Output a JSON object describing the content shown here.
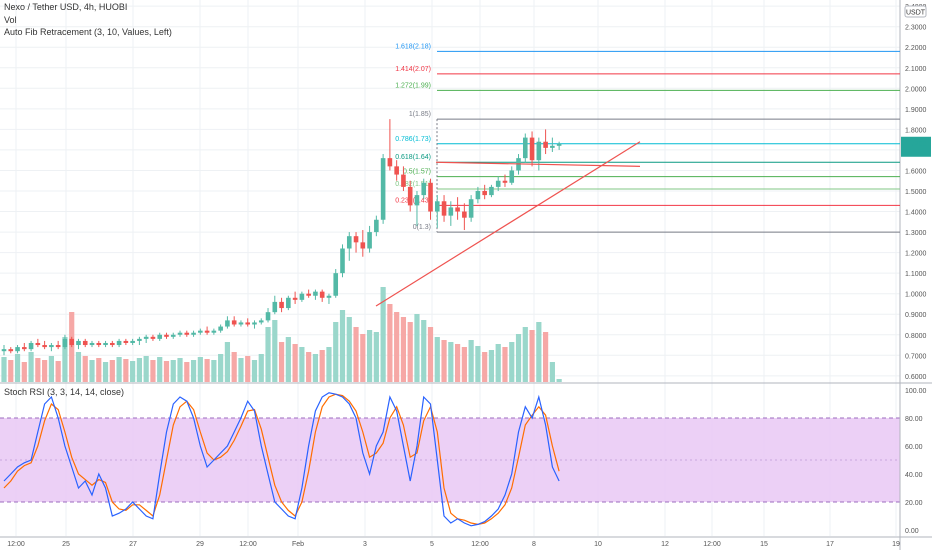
{
  "header": {
    "symbol_line": "Nexo / Tether USD, 4h, HUOBI",
    "volume_label": "Vol",
    "fib_label": "Auto Fib Retracement (3, 10, Values, Left)"
  },
  "stoch_label": "Stoch RSI (3, 3, 14, 14, close)",
  "colors": {
    "up": "#53b9a6",
    "down": "#ef5350",
    "grid": "#eef1f4",
    "rsi_band": "#e9c8f5",
    "k_line": "#2962ff",
    "d_line": "#ff6d00",
    "trend": "#ef5350"
  },
  "price_axis": {
    "currency": "USDT",
    "ticks": [
      "2.4000",
      "2.3000",
      "2.2000",
      "2.1000",
      "2.0000",
      "1.9000",
      "1.8000",
      "1.7000",
      "1.6000",
      "1.5000",
      "1.4000",
      "1.3000",
      "1.2000",
      "1.1000",
      "1.0000",
      "0.9000",
      "0.8000",
      "0.7000",
      "0.6000"
    ],
    "current_price_label": "1.7263"
  },
  "rsi_axis": {
    "ticks": [
      "100.00",
      "80.00",
      "60.00",
      "40.00",
      "20.00",
      "0.00"
    ]
  },
  "time_axis": {
    "labels": [
      "12:00",
      "25",
      "27",
      "29",
      "12:00",
      "Feb",
      "3",
      "5",
      "12:00",
      "8",
      "10",
      "12",
      "12:00",
      "15",
      "17",
      "19"
    ]
  },
  "chart_data": {
    "type": "candlestick",
    "title": "Nexo / Tether USD, 4h, HUOBI",
    "ylim": [
      0.57,
      2.43
    ],
    "candles": [
      {
        "o": 0.72,
        "h": 0.75,
        "l": 0.7,
        "c": 0.73,
        "v": 25
      },
      {
        "o": 0.73,
        "h": 0.74,
        "l": 0.71,
        "c": 0.72,
        "v": 22
      },
      {
        "o": 0.72,
        "h": 0.75,
        "l": 0.71,
        "c": 0.74,
        "v": 28
      },
      {
        "o": 0.74,
        "h": 0.76,
        "l": 0.72,
        "c": 0.73,
        "v": 20
      },
      {
        "o": 0.73,
        "h": 0.77,
        "l": 0.72,
        "c": 0.76,
        "v": 30
      },
      {
        "o": 0.76,
        "h": 0.78,
        "l": 0.74,
        "c": 0.75,
        "v": 24
      },
      {
        "o": 0.75,
        "h": 0.77,
        "l": 0.73,
        "c": 0.74,
        "v": 22
      },
      {
        "o": 0.74,
        "h": 0.76,
        "l": 0.72,
        "c": 0.75,
        "v": 26
      },
      {
        "o": 0.75,
        "h": 0.77,
        "l": 0.73,
        "c": 0.74,
        "v": 21
      },
      {
        "o": 0.74,
        "h": 0.8,
        "l": 0.73,
        "c": 0.78,
        "v": 45
      },
      {
        "o": 0.78,
        "h": 0.79,
        "l": 0.74,
        "c": 0.75,
        "v": 70
      },
      {
        "o": 0.75,
        "h": 0.78,
        "l": 0.73,
        "c": 0.77,
        "v": 30
      },
      {
        "o": 0.77,
        "h": 0.78,
        "l": 0.74,
        "c": 0.75,
        "v": 26
      },
      {
        "o": 0.75,
        "h": 0.77,
        "l": 0.74,
        "c": 0.76,
        "v": 22
      },
      {
        "o": 0.76,
        "h": 0.77,
        "l": 0.74,
        "c": 0.75,
        "v": 24
      },
      {
        "o": 0.75,
        "h": 0.77,
        "l": 0.74,
        "c": 0.76,
        "v": 20
      },
      {
        "o": 0.76,
        "h": 0.77,
        "l": 0.74,
        "c": 0.75,
        "v": 22
      },
      {
        "o": 0.75,
        "h": 0.78,
        "l": 0.74,
        "c": 0.77,
        "v": 25
      },
      {
        "o": 0.77,
        "h": 0.78,
        "l": 0.75,
        "c": 0.76,
        "v": 23
      },
      {
        "o": 0.76,
        "h": 0.78,
        "l": 0.75,
        "c": 0.77,
        "v": 21
      },
      {
        "o": 0.77,
        "h": 0.79,
        "l": 0.75,
        "c": 0.78,
        "v": 24
      },
      {
        "o": 0.78,
        "h": 0.8,
        "l": 0.76,
        "c": 0.79,
        "v": 26
      },
      {
        "o": 0.79,
        "h": 0.8,
        "l": 0.77,
        "c": 0.78,
        "v": 22
      },
      {
        "o": 0.78,
        "h": 0.81,
        "l": 0.77,
        "c": 0.8,
        "v": 25
      },
      {
        "o": 0.8,
        "h": 0.81,
        "l": 0.78,
        "c": 0.79,
        "v": 21
      },
      {
        "o": 0.79,
        "h": 0.81,
        "l": 0.78,
        "c": 0.8,
        "v": 22
      },
      {
        "o": 0.8,
        "h": 0.82,
        "l": 0.79,
        "c": 0.81,
        "v": 24
      },
      {
        "o": 0.81,
        "h": 0.82,
        "l": 0.79,
        "c": 0.8,
        "v": 20
      },
      {
        "o": 0.8,
        "h": 0.82,
        "l": 0.79,
        "c": 0.81,
        "v": 22
      },
      {
        "o": 0.81,
        "h": 0.83,
        "l": 0.8,
        "c": 0.82,
        "v": 25
      },
      {
        "o": 0.82,
        "h": 0.84,
        "l": 0.8,
        "c": 0.81,
        "v": 23
      },
      {
        "o": 0.81,
        "h": 0.83,
        "l": 0.8,
        "c": 0.82,
        "v": 22
      },
      {
        "o": 0.82,
        "h": 0.85,
        "l": 0.81,
        "c": 0.84,
        "v": 28
      },
      {
        "o": 0.84,
        "h": 0.89,
        "l": 0.83,
        "c": 0.87,
        "v": 40
      },
      {
        "o": 0.87,
        "h": 0.89,
        "l": 0.84,
        "c": 0.85,
        "v": 30
      },
      {
        "o": 0.85,
        "h": 0.87,
        "l": 0.84,
        "c": 0.86,
        "v": 24
      },
      {
        "o": 0.86,
        "h": 0.88,
        "l": 0.84,
        "c": 0.85,
        "v": 26
      },
      {
        "o": 0.85,
        "h": 0.87,
        "l": 0.83,
        "c": 0.86,
        "v": 22
      },
      {
        "o": 0.86,
        "h": 0.88,
        "l": 0.85,
        "c": 0.87,
        "v": 28
      },
      {
        "o": 0.87,
        "h": 0.93,
        "l": 0.86,
        "c": 0.91,
        "v": 55
      },
      {
        "o": 0.91,
        "h": 0.99,
        "l": 0.9,
        "c": 0.96,
        "v": 62
      },
      {
        "o": 0.96,
        "h": 0.98,
        "l": 0.91,
        "c": 0.93,
        "v": 40
      },
      {
        "o": 0.93,
        "h": 0.99,
        "l": 0.92,
        "c": 0.98,
        "v": 45
      },
      {
        "o": 0.98,
        "h": 1.01,
        "l": 0.95,
        "c": 0.97,
        "v": 38
      },
      {
        "o": 0.97,
        "h": 1.01,
        "l": 0.96,
        "c": 1.0,
        "v": 35
      },
      {
        "o": 1.0,
        "h": 1.02,
        "l": 0.98,
        "c": 0.99,
        "v": 30
      },
      {
        "o": 0.99,
        "h": 1.02,
        "l": 0.97,
        "c": 1.01,
        "v": 28
      },
      {
        "o": 1.01,
        "h": 1.02,
        "l": 0.96,
        "c": 0.98,
        "v": 32
      },
      {
        "o": 0.98,
        "h": 1.0,
        "l": 0.95,
        "c": 0.99,
        "v": 35
      },
      {
        "o": 0.99,
        "h": 1.12,
        "l": 0.98,
        "c": 1.1,
        "v": 60
      },
      {
        "o": 1.1,
        "h": 1.24,
        "l": 1.08,
        "c": 1.22,
        "v": 72
      },
      {
        "o": 1.22,
        "h": 1.3,
        "l": 1.16,
        "c": 1.28,
        "v": 65
      },
      {
        "o": 1.28,
        "h": 1.3,
        "l": 1.2,
        "c": 1.25,
        "v": 55
      },
      {
        "o": 1.25,
        "h": 1.31,
        "l": 1.18,
        "c": 1.22,
        "v": 48
      },
      {
        "o": 1.22,
        "h": 1.33,
        "l": 1.2,
        "c": 1.3,
        "v": 52
      },
      {
        "o": 1.3,
        "h": 1.38,
        "l": 1.28,
        "c": 1.36,
        "v": 50
      },
      {
        "o": 1.36,
        "h": 1.68,
        "l": 1.34,
        "c": 1.66,
        "v": 95
      },
      {
        "o": 1.66,
        "h": 1.85,
        "l": 1.6,
        "c": 1.62,
        "v": 78
      },
      {
        "o": 1.62,
        "h": 1.65,
        "l": 1.55,
        "c": 1.58,
        "v": 70
      },
      {
        "o": 1.58,
        "h": 1.62,
        "l": 1.5,
        "c": 1.52,
        "v": 65
      },
      {
        "o": 1.52,
        "h": 1.55,
        "l": 1.4,
        "c": 1.43,
        "v": 60
      },
      {
        "o": 1.43,
        "h": 1.5,
        "l": 1.33,
        "c": 1.48,
        "v": 68
      },
      {
        "o": 1.48,
        "h": 1.56,
        "l": 1.46,
        "c": 1.54,
        "v": 62
      },
      {
        "o": 1.54,
        "h": 1.56,
        "l": 1.36,
        "c": 1.4,
        "v": 55
      },
      {
        "o": 1.4,
        "h": 1.48,
        "l": 1.32,
        "c": 1.45,
        "v": 45
      },
      {
        "o": 1.45,
        "h": 1.48,
        "l": 1.35,
        "c": 1.38,
        "v": 42
      },
      {
        "o": 1.38,
        "h": 1.45,
        "l": 1.33,
        "c": 1.42,
        "v": 40
      },
      {
        "o": 1.42,
        "h": 1.47,
        "l": 1.36,
        "c": 1.4,
        "v": 38
      },
      {
        "o": 1.4,
        "h": 1.44,
        "l": 1.31,
        "c": 1.37,
        "v": 35
      },
      {
        "o": 1.37,
        "h": 1.48,
        "l": 1.35,
        "c": 1.46,
        "v": 42
      },
      {
        "o": 1.46,
        "h": 1.52,
        "l": 1.44,
        "c": 1.5,
        "v": 36
      },
      {
        "o": 1.5,
        "h": 1.53,
        "l": 1.46,
        "c": 1.48,
        "v": 30
      },
      {
        "o": 1.48,
        "h": 1.53,
        "l": 1.47,
        "c": 1.52,
        "v": 32
      },
      {
        "o": 1.52,
        "h": 1.57,
        "l": 1.5,
        "c": 1.55,
        "v": 38
      },
      {
        "o": 1.55,
        "h": 1.58,
        "l": 1.52,
        "c": 1.54,
        "v": 35
      },
      {
        "o": 1.54,
        "h": 1.62,
        "l": 1.53,
        "c": 1.6,
        "v": 40
      },
      {
        "o": 1.6,
        "h": 1.68,
        "l": 1.58,
        "c": 1.66,
        "v": 48
      },
      {
        "o": 1.66,
        "h": 1.78,
        "l": 1.64,
        "c": 1.76,
        "v": 55
      },
      {
        "o": 1.76,
        "h": 1.79,
        "l": 1.62,
        "c": 1.65,
        "v": 52
      },
      {
        "o": 1.65,
        "h": 1.76,
        "l": 1.6,
        "c": 1.74,
        "v": 60
      },
      {
        "o": 1.74,
        "h": 1.8,
        "l": 1.68,
        "c": 1.71,
        "v": 50
      },
      {
        "o": 1.71,
        "h": 1.76,
        "l": 1.69,
        "c": 1.72,
        "v": 20
      },
      {
        "o": 1.72,
        "h": 1.74,
        "l": 1.7,
        "c": 1.73,
        "v": 3
      }
    ],
    "fib_levels": [
      {
        "label": "1.618(2.18)",
        "price": 2.18,
        "color": "#2196f3"
      },
      {
        "label": "1.414(2.07)",
        "price": 2.07,
        "color": "#f23645"
      },
      {
        "label": "1.272(1.99)",
        "price": 1.99,
        "color": "#4caf50"
      },
      {
        "label": "1(1.85)",
        "price": 1.85,
        "color": "#787b86"
      },
      {
        "label": "0.786(1.73)",
        "price": 1.73,
        "color": "#00bcd4"
      },
      {
        "label": "0.618(1.64)",
        "price": 1.64,
        "color": "#089981"
      },
      {
        "label": "0.5(1.57)",
        "price": 1.57,
        "color": "#4caf50"
      },
      {
        "label": "0.382(1.51)",
        "price": 1.51,
        "color": "#81c784"
      },
      {
        "label": "0.236(1.43)",
        "price": 1.43,
        "color": "#f23645"
      },
      {
        "label": "0(1.3)",
        "price": 1.3,
        "color": "#787b86"
      }
    ],
    "stoch_rsi": {
      "ylim": [
        0,
        100
      ],
      "band": [
        20,
        80
      ],
      "k": [
        35,
        40,
        45,
        48,
        50,
        70,
        90,
        95,
        80,
        60,
        45,
        30,
        35,
        25,
        40,
        30,
        10,
        12,
        15,
        20,
        15,
        10,
        8,
        40,
        70,
        90,
        95,
        92,
        80,
        60,
        45,
        50,
        55,
        60,
        70,
        80,
        92,
        85,
        60,
        40,
        20,
        15,
        10,
        8,
        30,
        60,
        85,
        95,
        98,
        97,
        95,
        90,
        80,
        55,
        40,
        60,
        70,
        95,
        85,
        60,
        35,
        60,
        95,
        90,
        50,
        10,
        5,
        8,
        5,
        3,
        4,
        6,
        10,
        15,
        25,
        40,
        70,
        88,
        80,
        95,
        75,
        45,
        35
      ],
      "d": [
        30,
        35,
        42,
        46,
        48,
        60,
        78,
        90,
        86,
        70,
        52,
        40,
        36,
        32,
        36,
        34,
        20,
        15,
        14,
        18,
        18,
        14,
        10,
        25,
        50,
        75,
        88,
        92,
        86,
        70,
        55,
        50,
        52,
        56,
        64,
        74,
        85,
        86,
        72,
        52,
        32,
        20,
        14,
        10,
        20,
        42,
        70,
        88,
        95,
        97,
        96,
        92,
        85,
        70,
        52,
        55,
        62,
        80,
        88,
        75,
        52,
        55,
        78,
        88,
        70,
        30,
        12,
        8,
        7,
        5,
        4,
        5,
        8,
        12,
        18,
        30,
        52,
        75,
        82,
        88,
        82,
        60,
        42
      ]
    }
  }
}
